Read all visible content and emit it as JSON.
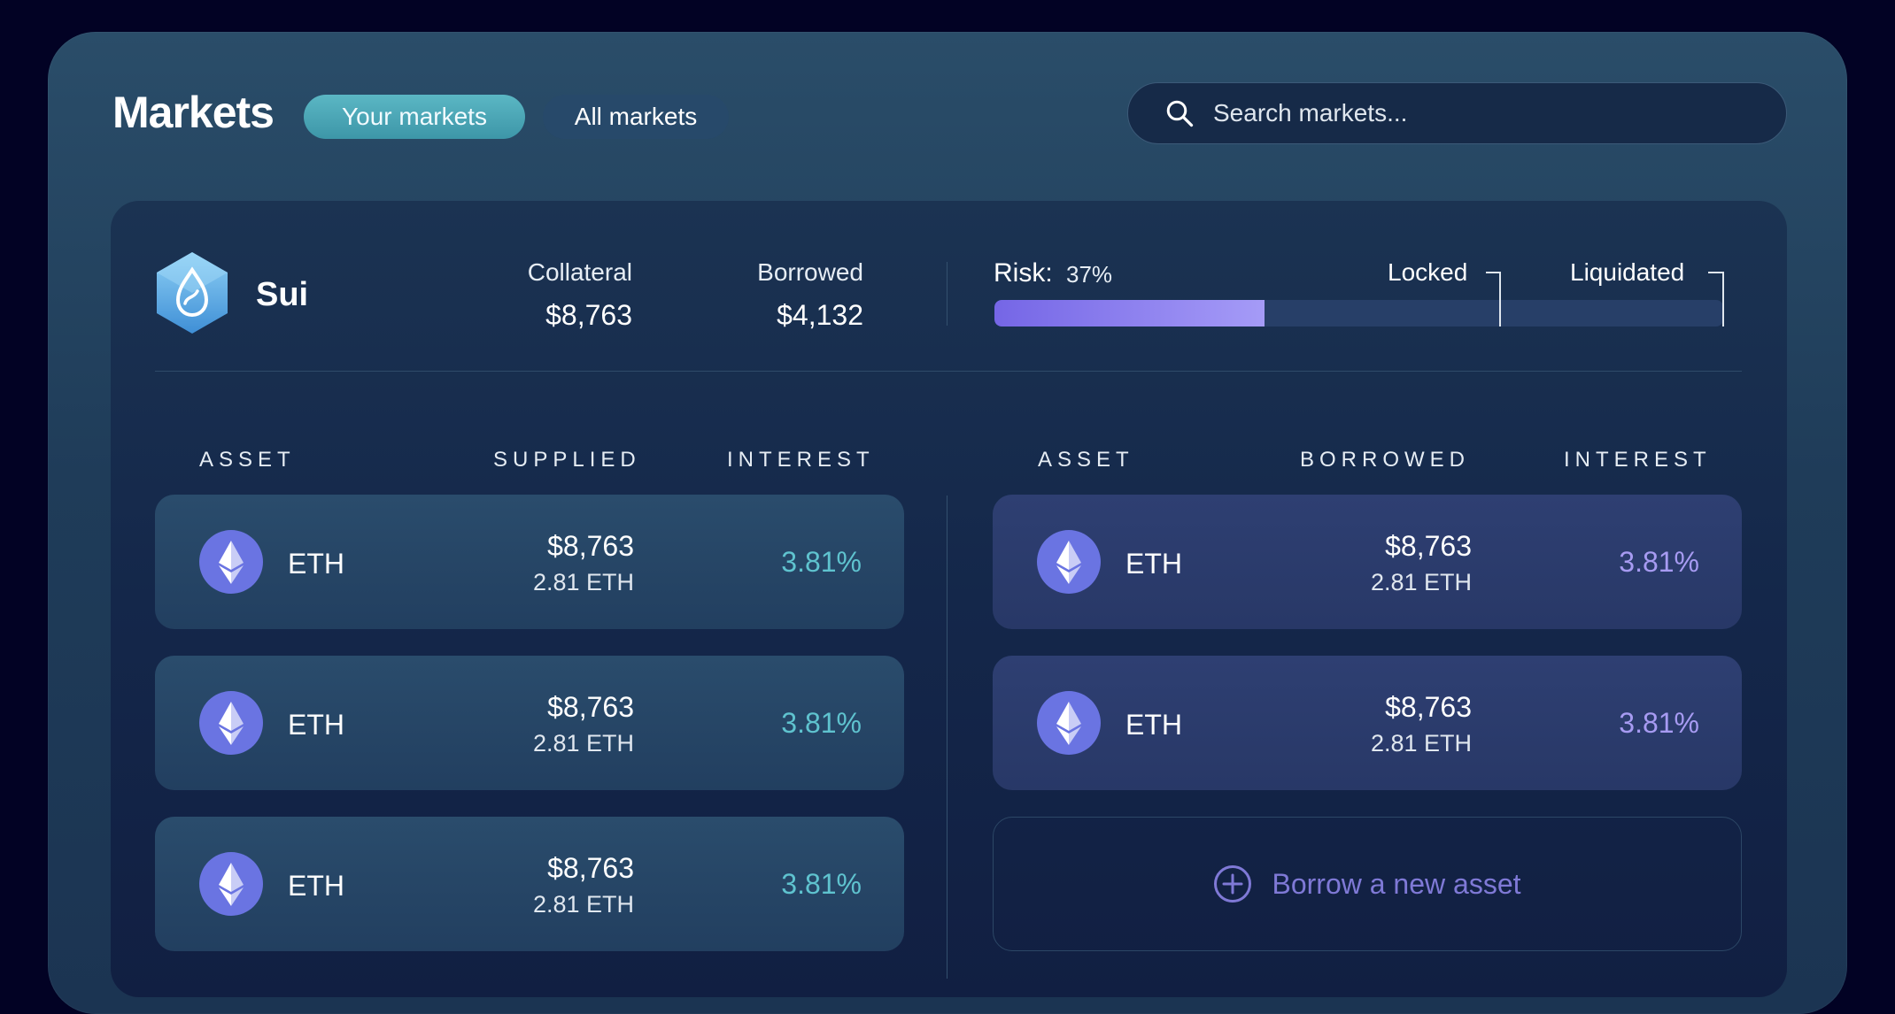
{
  "header": {
    "title": "Markets",
    "tabs": [
      {
        "label": "Your markets",
        "active": true
      },
      {
        "label": "All markets",
        "active": false
      }
    ],
    "search": {
      "placeholder": "Search markets..."
    }
  },
  "market": {
    "name": "Sui",
    "collateral_label": "Collateral",
    "collateral_value": "$8,763",
    "borrowed_label": "Borrowed",
    "borrowed_value": "$4,132",
    "risk": {
      "label": "Risk:",
      "value_text": "37%",
      "value": 0.37,
      "locked_label": "Locked",
      "liquidated_label": "Liquidated"
    }
  },
  "supplied": {
    "headers": [
      "ASSET",
      "SUPPLIED",
      "INTEREST"
    ],
    "rows": [
      {
        "asset": "ETH",
        "usd": "$8,763",
        "amount": "2.81 ETH",
        "interest": "3.81%"
      },
      {
        "asset": "ETH",
        "usd": "$8,763",
        "amount": "2.81 ETH",
        "interest": "3.81%"
      },
      {
        "asset": "ETH",
        "usd": "$8,763",
        "amount": "2.81 ETH",
        "interest": "3.81%"
      }
    ]
  },
  "borrowed": {
    "headers": [
      "ASSET",
      "BORROWED",
      "INTEREST"
    ],
    "rows": [
      {
        "asset": "ETH",
        "usd": "$8,763",
        "amount": "2.81 ETH",
        "interest": "3.81%"
      },
      {
        "asset": "ETH",
        "usd": "$8,763",
        "amount": "2.81 ETH",
        "interest": "3.81%"
      }
    ],
    "add_label": "Borrow a new asset"
  },
  "colors": {
    "background": "#020224",
    "accent_teal": "#4aa8b8",
    "accent_purple": "#7f79d6",
    "eth_icon": "#6a74e2"
  },
  "icons": {
    "search": "search-icon",
    "market_logo": "sui-logo",
    "asset": "ethereum-icon",
    "add": "plus-circle-icon"
  }
}
